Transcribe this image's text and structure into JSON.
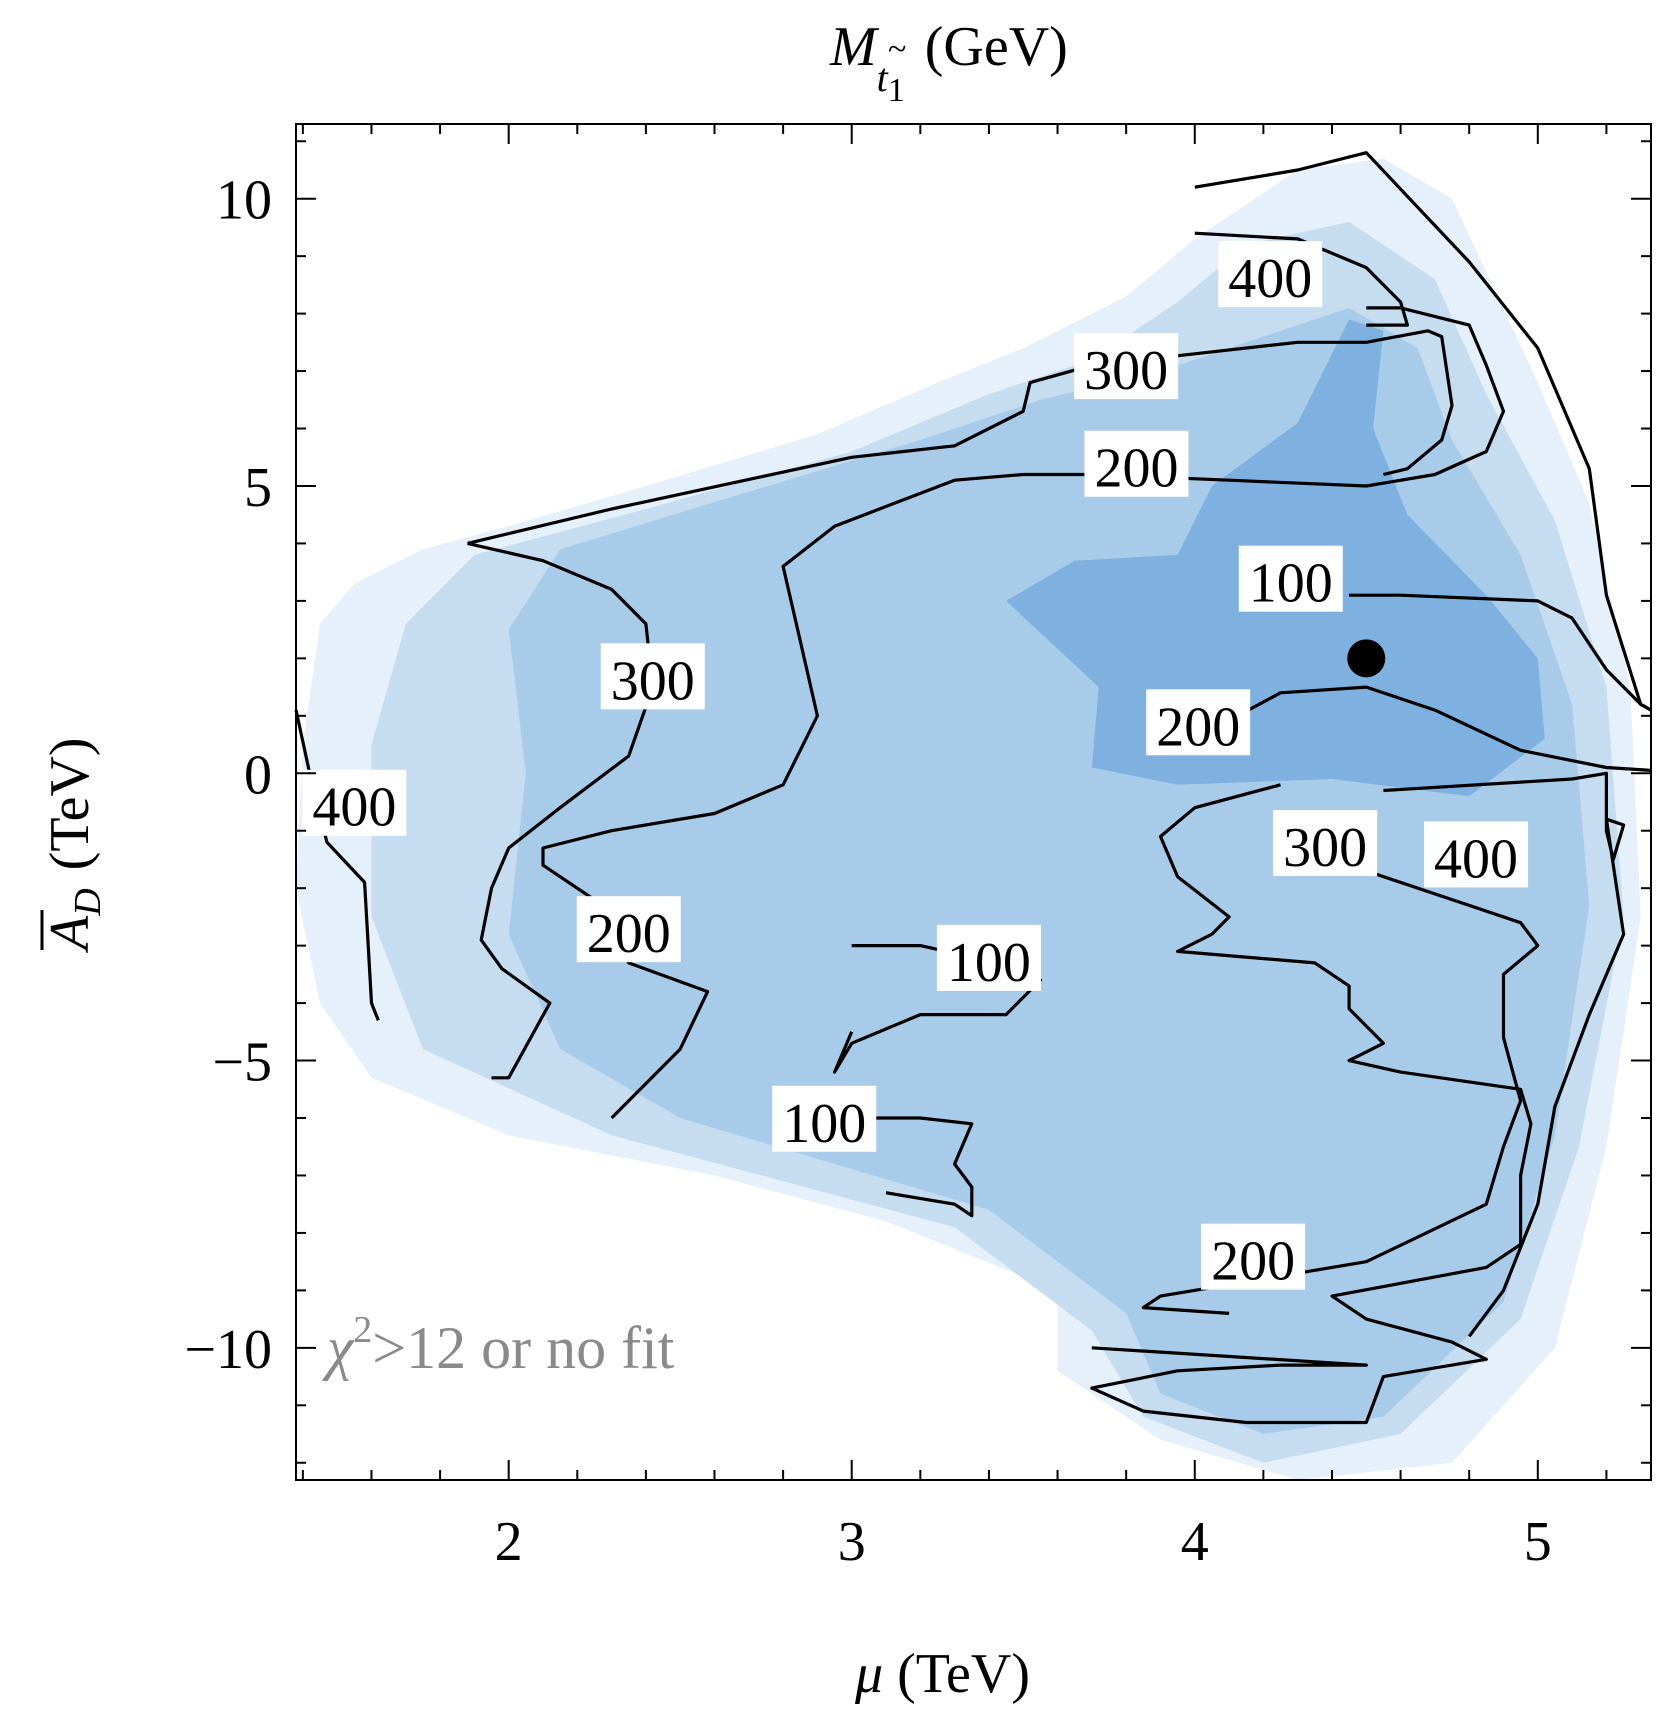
{
  "chart_data": {
    "type": "contour",
    "title": "M_t1 (GeV)",
    "title_parts": {
      "symbol": "M",
      "sub_base": "t",
      "sub_index": "1",
      "unit": "(GeV)"
    },
    "xlabel": "μ (TeV)",
    "xlabel_parts": {
      "symbol": "μ",
      "unit": "(TeV)"
    },
    "ylabel": "A_D (TeV)",
    "ylabel_parts": {
      "symbol": "A",
      "sub": "D",
      "unit": "(TeV)"
    },
    "xlim": [
      1.38,
      5.33
    ],
    "ylim": [
      -12.3,
      11.3
    ],
    "x_ticks": [
      {
        "value": 2,
        "label": "2"
      },
      {
        "value": 3,
        "label": "3"
      },
      {
        "value": 4,
        "label": "4"
      },
      {
        "value": 5,
        "label": "5"
      }
    ],
    "y_ticks": [
      {
        "value": 10,
        "label": "10"
      },
      {
        "value": 5,
        "label": "5"
      },
      {
        "value": 0,
        "label": "0"
      },
      {
        "value": -5,
        "label": "−5"
      },
      {
        "value": -10,
        "label": "−10"
      }
    ],
    "colors": {
      "region_outer": "#e6f0fa",
      "region_mid": "#c6ddf1",
      "region_inner": "#a9cbea",
      "region_core": "#7eb1e0",
      "contour": "#000000",
      "annotation": "#8a8a8a"
    },
    "filled_regions": [
      {
        "name": "outer",
        "points": [
          [
            1.45,
            2.6
          ],
          [
            1.55,
            3.3
          ],
          [
            1.75,
            3.9
          ],
          [
            2.0,
            4.3
          ],
          [
            2.4,
            5.0
          ],
          [
            2.9,
            5.9
          ],
          [
            3.25,
            6.8
          ],
          [
            3.5,
            7.4
          ],
          [
            3.8,
            8.3
          ],
          [
            4.0,
            9.3
          ],
          [
            4.3,
            10.5
          ],
          [
            4.55,
            10.7
          ],
          [
            4.75,
            10.0
          ],
          [
            5.0,
            6.8
          ],
          [
            5.15,
            4.7
          ],
          [
            5.27,
            1.5
          ],
          [
            5.3,
            -2.5
          ],
          [
            5.2,
            -6.5
          ],
          [
            5.05,
            -10.0
          ],
          [
            4.75,
            -12.0
          ],
          [
            4.3,
            -12.3
          ],
          [
            3.9,
            -11.6
          ],
          [
            3.6,
            -10.4
          ],
          [
            3.6,
            -9.0
          ],
          [
            3.1,
            -7.8
          ],
          [
            2.6,
            -7.0
          ],
          [
            2.0,
            -6.3
          ],
          [
            1.6,
            -5.3
          ],
          [
            1.45,
            -4.0
          ],
          [
            1.38,
            -2.0
          ],
          [
            1.4,
            0.5
          ]
        ]
      },
      {
        "name": "mid",
        "points": [
          [
            1.9,
            3.8
          ],
          [
            2.4,
            4.6
          ],
          [
            3.0,
            5.6
          ],
          [
            3.4,
            6.6
          ],
          [
            3.7,
            7.2
          ],
          [
            3.95,
            8.2
          ],
          [
            4.15,
            9.2
          ],
          [
            4.45,
            9.6
          ],
          [
            4.7,
            8.6
          ],
          [
            4.85,
            6.6
          ],
          [
            5.05,
            4.4
          ],
          [
            5.2,
            1.5
          ],
          [
            5.25,
            -2.5
          ],
          [
            5.12,
            -6.5
          ],
          [
            4.95,
            -9.5
          ],
          [
            4.6,
            -11.5
          ],
          [
            4.2,
            -12.0
          ],
          [
            3.85,
            -11.2
          ],
          [
            3.7,
            -9.7
          ],
          [
            3.3,
            -7.9
          ],
          [
            2.8,
            -7.1
          ],
          [
            2.3,
            -6.3
          ],
          [
            1.75,
            -4.8
          ],
          [
            1.6,
            -2.5
          ],
          [
            1.6,
            0.5
          ],
          [
            1.7,
            2.6
          ]
        ]
      },
      {
        "name": "inner",
        "points": [
          [
            2.15,
            3.9
          ],
          [
            2.7,
            4.9
          ],
          [
            3.2,
            5.8
          ],
          [
            3.55,
            6.5
          ],
          [
            3.9,
            7.0
          ],
          [
            4.2,
            7.6
          ],
          [
            4.45,
            8.1
          ],
          [
            4.65,
            7.4
          ],
          [
            4.75,
            5.8
          ],
          [
            4.95,
            3.8
          ],
          [
            5.1,
            1.2
          ],
          [
            5.15,
            -2.3
          ],
          [
            5.05,
            -6.3
          ],
          [
            4.9,
            -9.2
          ],
          [
            4.55,
            -11.2
          ],
          [
            4.2,
            -11.5
          ],
          [
            3.9,
            -10.8
          ],
          [
            3.8,
            -9.4
          ],
          [
            3.4,
            -7.6
          ],
          [
            2.95,
            -6.8
          ],
          [
            2.5,
            -6.0
          ],
          [
            2.15,
            -4.8
          ],
          [
            2.0,
            -2.8
          ],
          [
            2.05,
            0.0
          ],
          [
            2.0,
            2.5
          ]
        ]
      },
      {
        "name": "core",
        "points": [
          [
            3.95,
            3.8
          ],
          [
            4.05,
            5.0
          ],
          [
            4.3,
            6.1
          ],
          [
            4.45,
            7.9
          ],
          [
            4.55,
            7.7
          ],
          [
            4.52,
            6.0
          ],
          [
            4.62,
            4.5
          ],
          [
            4.85,
            3.1
          ],
          [
            5.0,
            2.0
          ],
          [
            5.02,
            0.6
          ],
          [
            4.8,
            -0.4
          ],
          [
            4.4,
            -0.1
          ],
          [
            3.95,
            -0.2
          ],
          [
            3.7,
            0.1
          ],
          [
            3.72,
            1.5
          ],
          [
            3.45,
            3.0
          ],
          [
            3.65,
            3.7
          ]
        ]
      }
    ],
    "contours": [
      {
        "level": 400,
        "points": [
          [
            1.38,
            1.1
          ],
          [
            1.42,
            0.0
          ],
          [
            1.47,
            -1.2
          ],
          [
            1.58,
            -1.9
          ],
          [
            1.6,
            -4.0
          ],
          [
            1.62,
            -4.3
          ]
        ]
      },
      {
        "level": 300,
        "points": [
          [
            1.88,
            4.0
          ],
          [
            2.1,
            3.7
          ],
          [
            2.3,
            3.2
          ],
          [
            2.4,
            2.6
          ],
          [
            2.42,
            1.5
          ],
          [
            2.35,
            0.3
          ],
          [
            2.15,
            -0.6
          ],
          [
            2.0,
            -1.3
          ],
          [
            1.95,
            -2.0
          ],
          [
            1.92,
            -2.9
          ],
          [
            1.98,
            -3.4
          ],
          [
            2.12,
            -4.0
          ],
          [
            2.0,
            -5.3
          ],
          [
            1.95,
            -5.3
          ]
        ]
      },
      {
        "level": 300,
        "points": [
          [
            1.88,
            4.0
          ],
          [
            2.3,
            4.6
          ],
          [
            3.0,
            5.5
          ],
          [
            3.3,
            5.7
          ],
          [
            3.5,
            6.3
          ],
          [
            3.52,
            6.8
          ],
          [
            3.7,
            7.1
          ],
          [
            4.0,
            7.3
          ],
          [
            4.3,
            7.5
          ],
          [
            4.5,
            7.5
          ],
          [
            4.68,
            7.7
          ],
          [
            4.72,
            7.6
          ],
          [
            4.75,
            6.4
          ],
          [
            4.72,
            5.8
          ],
          [
            4.62,
            5.3
          ],
          [
            4.55,
            5.2
          ]
        ]
      },
      {
        "level": 200,
        "points": [
          [
            2.3,
            -6.0
          ],
          [
            2.5,
            -4.8
          ],
          [
            2.58,
            -3.8
          ],
          [
            2.35,
            -3.3
          ],
          [
            2.25,
            -2.2
          ],
          [
            2.1,
            -1.6
          ],
          [
            2.1,
            -1.3
          ],
          [
            2.3,
            -1.0
          ],
          [
            2.6,
            -0.7
          ],
          [
            2.8,
            -0.2
          ],
          [
            2.9,
            1.0
          ],
          [
            2.85,
            2.3
          ],
          [
            2.8,
            3.6
          ],
          [
            2.95,
            4.3
          ],
          [
            3.3,
            5.1
          ],
          [
            3.5,
            5.2
          ],
          [
            3.7,
            5.2
          ],
          [
            4.1,
            5.1
          ],
          [
            4.5,
            5.0
          ],
          [
            4.7,
            5.2
          ],
          [
            4.85,
            5.6
          ],
          [
            4.9,
            6.3
          ],
          [
            4.85,
            7.1
          ],
          [
            4.8,
            7.8
          ],
          [
            4.6,
            8.1
          ],
          [
            4.5,
            8.1
          ]
        ]
      },
      {
        "level": 200,
        "points": [
          [
            4.0,
            0.6
          ],
          [
            4.25,
            1.4
          ],
          [
            4.5,
            1.5
          ],
          [
            4.7,
            1.1
          ],
          [
            4.95,
            0.4
          ],
          [
            5.2,
            0.1
          ],
          [
            5.33,
            0.05
          ]
        ]
      },
      {
        "level": 400,
        "points": [
          [
            4.0,
            9.4
          ],
          [
            4.3,
            9.3
          ],
          [
            4.5,
            8.8
          ],
          [
            4.6,
            8.2
          ],
          [
            4.62,
            7.8
          ],
          [
            4.5,
            7.8
          ]
        ]
      },
      {
        "level": 400,
        "points": [
          [
            4.0,
            10.2
          ],
          [
            4.3,
            10.5
          ],
          [
            4.5,
            10.8
          ],
          [
            4.8,
            8.9
          ],
          [
            5.0,
            7.4
          ],
          [
            5.15,
            5.3
          ],
          [
            5.2,
            3.1
          ],
          [
            5.3,
            1.2
          ],
          [
            5.33,
            1.1
          ]
        ]
      },
      {
        "level": 100,
        "points": [
          [
            4.45,
            3.1
          ],
          [
            4.6,
            3.1
          ],
          [
            5.0,
            3.0
          ],
          [
            5.1,
            2.7
          ],
          [
            5.2,
            1.8
          ],
          [
            5.3,
            1.2
          ],
          [
            5.33,
            1.1
          ]
        ]
      },
      {
        "level": 100,
        "points": [
          [
            3.0,
            -3.0
          ],
          [
            3.2,
            -3.0
          ],
          [
            3.35,
            -3.2
          ],
          [
            3.55,
            -3.6
          ],
          [
            3.45,
            -4.2
          ],
          [
            3.2,
            -4.2
          ],
          [
            3.0,
            -4.7
          ],
          [
            2.95,
            -5.2
          ],
          [
            3.0,
            -4.5
          ]
        ]
      },
      {
        "level": 100,
        "points": [
          [
            3.1,
            -7.3
          ],
          [
            3.3,
            -7.5
          ],
          [
            3.35,
            -7.7
          ],
          [
            3.35,
            -7.2
          ],
          [
            3.3,
            -6.8
          ],
          [
            3.35,
            -6.1
          ],
          [
            3.2,
            -6.0
          ],
          [
            3.0,
            -6.0
          ]
        ]
      },
      {
        "level": 300,
        "points": [
          [
            4.5,
            -1.7
          ],
          [
            4.8,
            -2.3
          ],
          [
            4.95,
            -2.6
          ],
          [
            5.0,
            -3.0
          ],
          [
            4.9,
            -3.5
          ],
          [
            4.9,
            -4.6
          ],
          [
            4.95,
            -5.7
          ],
          [
            4.9,
            -6.5
          ],
          [
            4.85,
            -7.5
          ],
          [
            4.5,
            -8.5
          ],
          [
            4.2,
            -8.8
          ],
          [
            3.9,
            -9.1
          ],
          [
            3.85,
            -9.3
          ],
          [
            4.1,
            -9.4
          ]
        ]
      },
      {
        "level": 300,
        "points": [
          [
            4.25,
            -0.2
          ],
          [
            4.0,
            -0.6
          ],
          [
            3.9,
            -1.1
          ],
          [
            3.95,
            -1.8
          ],
          [
            4.1,
            -2.5
          ],
          [
            4.05,
            -2.8
          ],
          [
            3.95,
            -3.1
          ],
          [
            4.35,
            -3.3
          ],
          [
            4.45,
            -3.7
          ],
          [
            4.45,
            -4.1
          ],
          [
            4.55,
            -4.7
          ],
          [
            4.45,
            -5.0
          ],
          [
            4.6,
            -5.2
          ],
          [
            4.95,
            -5.5
          ],
          [
            4.98,
            -6.1
          ],
          [
            4.95,
            -7.0
          ],
          [
            4.95,
            -8.2
          ],
          [
            4.85,
            -8.6
          ],
          [
            4.4,
            -9.1
          ],
          [
            4.5,
            -9.5
          ],
          [
            4.75,
            -9.9
          ],
          [
            4.85,
            -10.2
          ],
          [
            4.55,
            -10.5
          ],
          [
            4.5,
            -11.3
          ],
          [
            4.15,
            -11.3
          ],
          [
            3.85,
            -11.1
          ],
          [
            3.7,
            -10.7
          ],
          [
            3.95,
            -10.4
          ],
          [
            4.25,
            -10.3
          ],
          [
            4.5,
            -10.3
          ],
          [
            3.7,
            -10.0
          ]
        ]
      },
      {
        "level": 400,
        "points": [
          [
            4.55,
            -0.3
          ],
          [
            5.1,
            -0.1
          ],
          [
            5.2,
            0.0
          ],
          [
            5.2,
            -1.0
          ],
          [
            5.22,
            -1.5
          ],
          [
            5.25,
            -0.9
          ],
          [
            5.2,
            -0.8
          ],
          [
            5.25,
            -2.8
          ],
          [
            5.15,
            -4.2
          ],
          [
            5.05,
            -5.8
          ],
          [
            5.0,
            -7.5
          ],
          [
            4.9,
            -9.0
          ],
          [
            4.8,
            -9.8
          ]
        ]
      }
    ],
    "contour_labels": [
      {
        "value": "400",
        "x": 1.55,
        "y": -0.6
      },
      {
        "value": "300",
        "x": 2.42,
        "y": 1.6
      },
      {
        "value": "200",
        "x": 2.35,
        "y": -2.8
      },
      {
        "value": "300",
        "x": 3.8,
        "y": 7.0
      },
      {
        "value": "200",
        "x": 3.83,
        "y": 5.3
      },
      {
        "value": "400",
        "x": 4.22,
        "y": 8.6
      },
      {
        "value": "100",
        "x": 4.28,
        "y": 3.3
      },
      {
        "value": "200",
        "x": 4.01,
        "y": 0.8
      },
      {
        "value": "300",
        "x": 4.38,
        "y": -1.3
      },
      {
        "value": "400",
        "x": 4.82,
        "y": -1.5
      },
      {
        "value": "100",
        "x": 3.4,
        "y": -3.3
      },
      {
        "value": "100",
        "x": 2.92,
        "y": -6.1
      },
      {
        "value": "200",
        "x": 4.17,
        "y": -8.5
      }
    ],
    "marker": {
      "x": 4.5,
      "y": 2.0
    },
    "annotation": {
      "text_symbol": "χ",
      "text_sup": "2",
      "text_rest": ">12 or no fit",
      "x": 1.47,
      "y": -10.0
    }
  }
}
